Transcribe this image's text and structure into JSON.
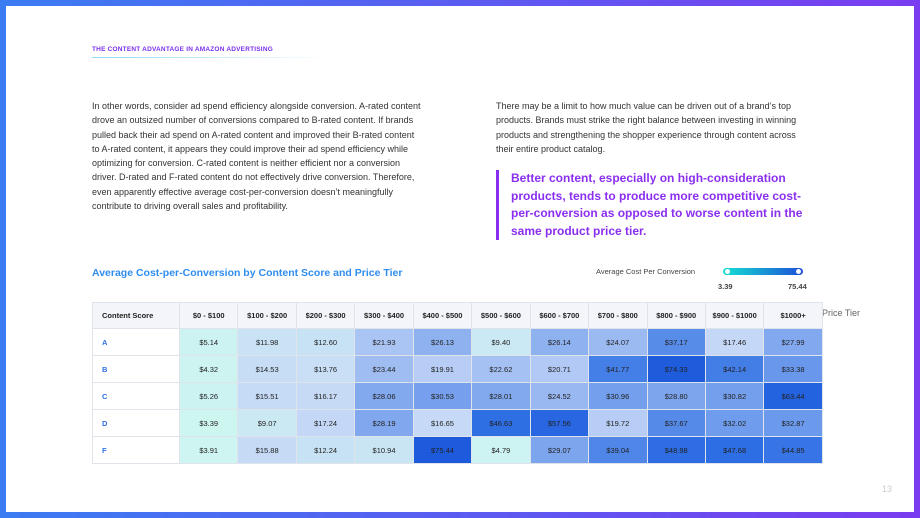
{
  "header": {
    "title": "THE CONTENT ADVANTAGE IN AMAZON ADVERTISING"
  },
  "body": {
    "left": "In other words, consider ad spend efficiency alongside conversion. A-rated content drove an outsized number of conversions compared to B-rated content. If brands pulled back their ad spend on A-rated content and improved their B-rated content to A-rated content, it appears they could improve their ad spend efficiency while optimizing for conversion. C-rated content is neither efficient nor a conversion driver. D-rated and F-rated content do not effectively drive conversion. Therefore, even apparently effective average cost-per-conversion doesn’t meaningfully contribute to driving overall sales and profitability.",
    "right": "There may be a limit to how much value can be driven out of a brand’s top products. Brands must strike the right balance between investing in winning products and strengthening the shopper experience through content across their entire product catalog.",
    "quote": "Better content, especially on high-consideration products, tends to produce more competitive cost-per-conversion as opposed to worse content in the same product price tier."
  },
  "table": {
    "title": "Average Cost-per-Conversion by Content Score and Price Tier",
    "legend": {
      "title": "Average Cost Per Conversion",
      "min": 3.39,
      "max": 75.44
    },
    "axis_label": "Price Tier",
    "columns": [
      "Content Score",
      "$0 - $100",
      "$100 - $200",
      "$200 - $300",
      "$300 - $400",
      "$400 - $500",
      "$500 - $600",
      "$600 - $700",
      "$700 - $800",
      "$800 - $900",
      "$900 - $1000",
      "$1000+"
    ],
    "rows": [
      [
        "A",
        "$5.14",
        "$11.98",
        "$12.60",
        "$21.93",
        "$26.13",
        "$9.40",
        "$26.14",
        "$24.07",
        "$37.17",
        "$17.46",
        "$27.99"
      ],
      [
        "B",
        "$4.32",
        "$14.53",
        "$13.76",
        "$23.44",
        "$19.91",
        "$22.62",
        "$20.71",
        "$41.77",
        "$74.33",
        "$42.14",
        "$33.38"
      ],
      [
        "C",
        "$5.26",
        "$15.51",
        "$16.17",
        "$28.06",
        "$30.53",
        "$28.01",
        "$24.52",
        "$30.96",
        "$28.80",
        "$30.82",
        "$63.44"
      ],
      [
        "D",
        "$3.39",
        "$9.07",
        "$17.24",
        "$28.19",
        "$16.65",
        "$46.63",
        "$57.56",
        "$19.72",
        "$37.67",
        "$32.02",
        "$32.87"
      ],
      [
        "F",
        "$3.91",
        "$15.88",
        "$12.24",
        "$10.94",
        "$75.44",
        "$4.79",
        "$29.07",
        "$39.04",
        "$48.98",
        "$47.68",
        "$44.85"
      ]
    ]
  },
  "page_number": 13
}
